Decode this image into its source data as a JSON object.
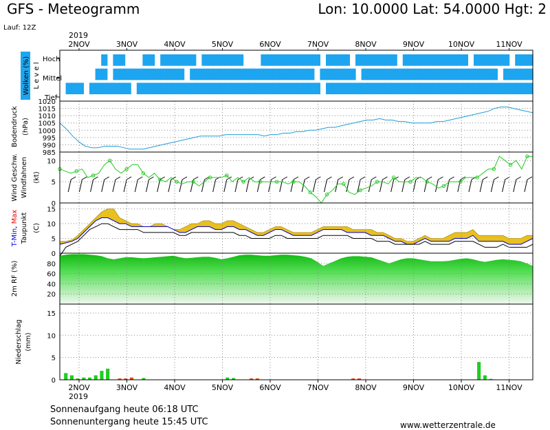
{
  "header": {
    "title": "GFS - Meteogramm",
    "coords": "Lon: 10.0000  Lat: 54.0000  Hgt: 2",
    "run": "Lauf: 12Z"
  },
  "footer": {
    "sunrise": "Sonnenaufgang heute 06:18 UTC",
    "sunset": "Sonnenuntergang heute 15:45 UTC",
    "source": "www.wetterzentrale.de"
  },
  "colors": {
    "cloud": "#1da5f0",
    "pressure_line": "#1ca0d8",
    "wind_line": "#22cc22",
    "precip_green": "#22cc22",
    "precip_red": "#e04a1a",
    "tmax_label": "#e00000",
    "tmin_label": "#0000dd",
    "rf_label": "#119911"
  },
  "chart_data": [
    {
      "type": "heatmap",
      "panel": "clouds",
      "ylabel": "Wolken (%)",
      "ylabel2": "L e v e l",
      "levels": [
        "Hoch",
        "Mittel",
        "Tief"
      ],
      "year": "2019",
      "x_ticks": [
        "2NOV",
        "3NOV",
        "4NOV",
        "5NOV",
        "6NOV",
        "7NOV",
        "8NOV",
        "9NOV",
        "10NOV",
        "11NOV"
      ],
      "rows": [
        [
          0,
          0,
          0,
          0,
          0,
          0,
          0,
          1,
          0,
          1,
          1,
          0,
          0,
          0,
          1,
          1,
          0,
          1,
          1,
          1,
          1,
          1,
          1,
          0,
          1,
          1,
          1,
          1,
          1,
          1,
          1,
          0,
          0,
          0,
          1,
          1,
          1,
          1,
          1,
          1,
          1,
          1,
          1,
          1,
          0,
          1,
          1,
          1,
          1,
          0,
          1,
          1,
          1,
          1,
          1,
          1,
          1,
          0,
          1,
          1,
          1,
          1,
          1,
          1,
          1,
          1,
          1,
          1,
          1,
          0,
          1,
          1,
          1,
          1,
          1,
          1,
          0,
          1,
          1,
          1
        ],
        [
          0,
          0,
          0,
          0,
          0,
          0,
          1,
          1,
          0,
          1,
          1,
          1,
          1,
          1,
          1,
          1,
          1,
          1,
          1,
          1,
          1,
          0,
          1,
          1,
          1,
          1,
          1,
          1,
          1,
          1,
          1,
          1,
          1,
          1,
          1,
          1,
          1,
          1,
          1,
          1,
          1,
          1,
          1,
          0,
          1,
          1,
          1,
          1,
          1,
          1,
          0,
          1,
          1,
          1,
          1,
          1,
          1,
          1,
          1,
          1,
          1,
          1,
          1,
          1,
          1,
          1,
          1,
          1,
          1,
          1,
          1,
          1,
          1,
          1,
          0,
          1,
          1,
          1,
          1,
          1
        ],
        [
          0,
          1,
          1,
          1,
          0,
          1,
          1,
          1,
          1,
          1,
          1,
          1,
          0,
          1,
          1,
          1,
          1,
          1,
          1,
          1,
          1,
          1,
          1,
          1,
          1,
          1,
          1,
          1,
          1,
          1,
          1,
          1,
          1,
          1,
          1,
          1,
          1,
          1,
          1,
          1,
          1,
          1,
          1,
          1,
          0,
          1,
          1,
          1,
          1,
          1,
          1,
          1,
          1,
          1,
          1,
          1,
          1,
          1,
          1,
          1,
          1,
          1,
          1,
          1,
          1,
          1,
          1,
          1,
          1,
          1,
          1,
          1,
          1,
          1,
          1,
          1,
          1,
          1,
          1,
          1
        ]
      ]
    },
    {
      "type": "line",
      "panel": "pressure",
      "ylabel": "Bodendruck",
      "ylabel2": "(hPa)",
      "ylim": [
        985,
        1020
      ],
      "y_ticks": [
        985,
        990,
        995,
        1000,
        1005,
        1010,
        1015,
        1020
      ],
      "values": [
        1005,
        1001,
        996,
        992,
        989,
        988,
        988,
        989,
        989,
        989,
        988,
        987,
        987,
        987,
        988,
        989,
        990,
        991,
        992,
        993,
        994,
        995,
        996,
        996,
        996,
        996,
        997,
        997,
        997,
        997,
        997,
        997,
        996,
        997,
        997,
        998,
        998,
        999,
        999,
        1000,
        1000,
        1001,
        1002,
        1002,
        1003,
        1004,
        1005,
        1006,
        1007,
        1007,
        1008,
        1007,
        1007,
        1006,
        1006,
        1005,
        1005,
        1005,
        1005,
        1006,
        1006,
        1007,
        1008,
        1009,
        1010,
        1011,
        1012,
        1013,
        1015,
        1016,
        1016,
        1015,
        1014,
        1013,
        1012
      ]
    },
    {
      "type": "line",
      "panel": "wind",
      "ylabel": "Wind Geschw.",
      "ylabel2": "Windfahnen",
      "ylabel3": "(kt)",
      "ylim": [
        0,
        12
      ],
      "y_ticks": [
        0,
        5,
        10
      ],
      "values": [
        8,
        7.5,
        7,
        7.5,
        8,
        6,
        6.5,
        7,
        9,
        10,
        8,
        7,
        8,
        9,
        9,
        7,
        6,
        7,
        5.5,
        5,
        6,
        5,
        4.5,
        5,
        5,
        4,
        5,
        6,
        6,
        6,
        6.5,
        5,
        6,
        5,
        6,
        5,
        5,
        5,
        5,
        5,
        5,
        4.5,
        5,
        5,
        4,
        2.5,
        1.5,
        0,
        2,
        3,
        4.5,
        4.5,
        2.5,
        2,
        3,
        3.5,
        4,
        5,
        5,
        4.5,
        6,
        5,
        5,
        5,
        6,
        6,
        5,
        4.5,
        3.5,
        4,
        5,
        5,
        5,
        6,
        6,
        6,
        7,
        8,
        8,
        11,
        10,
        9,
        10,
        8,
        11,
        11
      ]
    },
    {
      "type": "area",
      "panel": "temperature",
      "ylabel": "T-Min, Max",
      "ylabel_tmin": "T-Min",
      "ylabel_sep": ", ",
      "ylabel_tmax": "Max",
      "ylabel2": "Taupunkt",
      "ylabel3": "(C)",
      "ylim": [
        0,
        17
      ],
      "y_ticks": [
        0,
        5,
        10,
        15
      ],
      "tmax": [
        4,
        4,
        4.5,
        6,
        8,
        10,
        12,
        14,
        15,
        15,
        12,
        11,
        10,
        10,
        9,
        9,
        10,
        10,
        9,
        8,
        8,
        9,
        10,
        10,
        11,
        11,
        10,
        10,
        11,
        11,
        10,
        9,
        8,
        7,
        7,
        8,
        9,
        9,
        8,
        7,
        7,
        7,
        7,
        8,
        9,
        9,
        9,
        9,
        9,
        8,
        8,
        8,
        8,
        7,
        7,
        6,
        5,
        5,
        4,
        4,
        5,
        6,
        5,
        5,
        5,
        6,
        7,
        7,
        7,
        8,
        6,
        6,
        6,
        6,
        6,
        5,
        5,
        5,
        6,
        6
      ],
      "tmin": [
        3,
        3.5,
        4,
        5,
        7,
        9,
        11,
        12,
        12,
        11,
        10,
        10,
        9,
        9,
        9,
        9,
        9,
        9,
        9,
        8,
        7,
        7,
        8,
        9,
        9,
        9,
        8,
        8,
        9,
        9,
        8,
        8,
        7,
        6,
        6,
        7,
        8,
        8,
        7,
        6,
        6,
        6,
        6,
        7,
        8,
        8,
        8,
        8,
        7,
        7,
        7,
        7,
        6,
        6,
        6,
        5,
        4,
        4,
        3,
        3,
        4,
        5,
        4,
        4,
        4,
        4,
        5,
        5,
        5,
        6,
        4,
        4,
        4,
        4,
        4,
        3,
        3,
        3,
        4,
        5
      ],
      "dewpoint": [
        -1,
        2,
        3,
        4,
        6,
        8,
        9,
        10,
        10,
        9,
        8,
        8,
        8,
        8,
        7,
        7,
        7,
        7,
        7,
        7,
        6,
        6,
        7,
        7,
        7,
        7,
        7,
        7,
        7,
        7,
        6,
        6,
        5,
        5,
        5,
        5,
        6,
        6,
        5,
        5,
        5,
        5,
        5,
        5,
        6,
        6,
        6,
        6,
        6,
        5,
        5,
        5,
        5,
        4,
        4,
        4,
        3,
        3,
        3,
        3,
        3,
        4,
        3,
        3,
        3,
        3,
        4,
        4,
        4,
        4,
        3,
        2,
        2,
        2,
        3,
        2,
        2,
        2,
        2,
        3
      ]
    },
    {
      "type": "area",
      "panel": "humidity",
      "ylabel": "2m RF (%)",
      "ylim": [
        0,
        100
      ],
      "y_ticks": [
        20,
        40,
        60,
        80
      ],
      "values": [
        95,
        97,
        98,
        98,
        98,
        97,
        96,
        94,
        90,
        88,
        90,
        92,
        92,
        91,
        90,
        91,
        92,
        93,
        94,
        95,
        92,
        90,
        91,
        92,
        93,
        93,
        91,
        88,
        90,
        93,
        96,
        97,
        97,
        96,
        95,
        95,
        96,
        97,
        97,
        96,
        95,
        93,
        90,
        83,
        75,
        80,
        85,
        90,
        93,
        94,
        94,
        93,
        92,
        88,
        84,
        80,
        84,
        88,
        90,
        90,
        88,
        86,
        84,
        84,
        84,
        85,
        87,
        89,
        90,
        88,
        85,
        83,
        85,
        87,
        88,
        87,
        86,
        84,
        80,
        75
      ]
    },
    {
      "type": "bar",
      "panel": "precipitation",
      "ylabel": "Niederschlag",
      "ylabel2": "(mm)",
      "ylim": [
        0,
        17
      ],
      "y_ticks": [
        0,
        5,
        10,
        15
      ],
      "values": [
        0,
        1.5,
        1.0,
        0.3,
        0.5,
        0.5,
        1.0,
        2.0,
        2.5,
        0,
        0.3,
        0.3,
        0.5,
        0,
        0.4,
        0,
        0,
        0,
        0,
        0,
        0,
        0,
        0,
        0,
        0,
        0,
        0,
        0,
        0.5,
        0.4,
        0,
        0,
        0.3,
        0.3,
        0,
        0,
        0,
        0,
        0,
        0,
        0,
        0,
        0,
        0,
        0,
        0,
        0,
        0,
        0,
        0.3,
        0.3,
        0,
        0,
        0,
        0,
        0,
        0,
        0,
        0,
        0,
        0,
        0,
        0,
        0,
        0,
        0,
        0,
        0,
        0,
        0,
        4.0,
        1.0,
        0.2,
        0,
        0,
        0,
        0,
        0,
        0,
        0
      ],
      "colors": [
        "g",
        "g",
        "g",
        "g",
        "g",
        "g",
        "g",
        "g",
        "g",
        "g",
        "r",
        "r",
        "r",
        "g",
        "g",
        "g",
        "g",
        "g",
        "g",
        "g",
        "g",
        "g",
        "g",
        "g",
        "g",
        "g",
        "g",
        "g",
        "g",
        "g",
        "g",
        "r",
        "r",
        "r",
        "g",
        "g",
        "g",
        "g",
        "g",
        "g",
        "g",
        "g",
        "g",
        "g",
        "g",
        "g",
        "g",
        "g",
        "g",
        "r",
        "r",
        "g",
        "g",
        "g",
        "g",
        "g",
        "g",
        "g",
        "g",
        "g",
        "g",
        "g",
        "g",
        "g",
        "g",
        "g",
        "g",
        "g",
        "g",
        "g",
        "g",
        "g",
        "g",
        "g",
        "g",
        "g",
        "g",
        "g",
        "g",
        "g"
      ]
    }
  ]
}
